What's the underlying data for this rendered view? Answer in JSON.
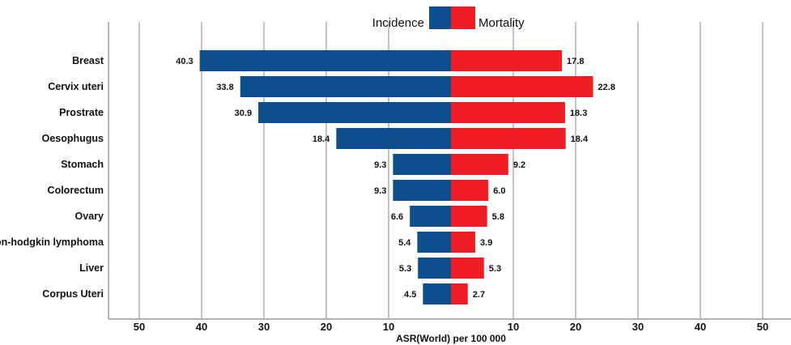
{
  "chart_data": {
    "type": "bar",
    "orientation": "horizontal",
    "layout": "population-pyramid",
    "categories": [
      "Breast",
      "Cervix uteri",
      "Prostrate",
      "Oesophugus",
      "Stomach",
      "Colorectum",
      "Ovary",
      "Non-hodgkin lymphoma",
      "Liver",
      "Corpus Uteri"
    ],
    "series": [
      {
        "name": "Incidence",
        "side": "left",
        "color": "#0d4f8c",
        "values": [
          40.3,
          33.8,
          30.9,
          18.4,
          9.3,
          9.3,
          6.6,
          5.4,
          5.3,
          4.5
        ],
        "labels": [
          "40.3",
          "33.8",
          "30.9",
          "18.4",
          "9.3",
          "9.3",
          "6.6",
          "5.4",
          "5.3",
          "4.5"
        ]
      },
      {
        "name": "Mortality",
        "side": "right",
        "color": "#ef1d24",
        "values": [
          17.8,
          22.8,
          18.3,
          18.4,
          9.2,
          6.0,
          5.8,
          3.9,
          5.3,
          2.7
        ],
        "labels": [
          "17.8",
          "22.8",
          "18.3",
          "18.4",
          "9.2",
          "6.0",
          "5.8",
          "3.9",
          "5.3",
          "2.7"
        ]
      }
    ],
    "xlabel": "ASR(World) per 100 000",
    "xlim": [
      -50,
      50
    ],
    "xticks": [
      -50,
      -40,
      -30,
      -20,
      -10,
      10,
      20,
      30,
      40,
      50
    ],
    "xtick_labels": [
      "50",
      "40",
      "30",
      "20",
      "10",
      "10",
      "20",
      "30",
      "40",
      "50"
    ],
    "grid": true,
    "legend_position": "top-center"
  }
}
